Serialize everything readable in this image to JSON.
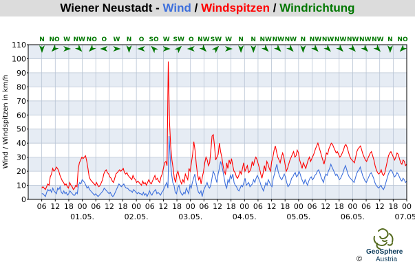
{
  "title": {
    "location": "Wiener Neustadt",
    "sep1": " - ",
    "wind": "Wind",
    "sep2": " / ",
    "gusts": "Windspitzen",
    "sep3": " / ",
    "direction": "Windrichtung"
  },
  "colors": {
    "wind": "#3d6fdc",
    "gusts": "#ff0000",
    "direction": "#007700",
    "band_light": "#e6ecf4",
    "band_white": "#ffffff",
    "grid": "#b8c4d4"
  },
  "branding": {
    "name": "GeoSphere",
    "sub": "Austria",
    "copyright": "©"
  },
  "chart_data": {
    "type": "line",
    "ylabel": "Wind / Windspitzen in km/h",
    "ylim": [
      0,
      110
    ],
    "yticks": [
      0,
      10,
      20,
      30,
      40,
      50,
      60,
      70,
      80,
      90,
      100,
      110
    ],
    "xlim_hours": [
      0,
      168
    ],
    "hour_ticks": [
      "06",
      "12",
      "18",
      "00",
      "06",
      "12",
      "18",
      "00",
      "06",
      "12",
      "18",
      "00",
      "06",
      "12",
      "18",
      "00",
      "06",
      "12",
      "18",
      "00",
      "06",
      "12",
      "18",
      "00",
      "06",
      "12",
      "18",
      "00",
      "06",
      "12",
      "18"
    ],
    "date_labels": [
      "01.05.",
      "02.05.",
      "03.05.",
      "04.05.",
      "05.05.",
      "06.05.",
      "07.05."
    ],
    "series": [
      {
        "name": "Wind",
        "values": [
          4,
          4,
          3,
          2,
          5,
          7,
          6,
          7,
          5,
          8,
          6,
          5,
          4,
          8,
          7,
          9,
          5,
          4,
          6,
          4,
          5,
          3,
          4,
          6,
          5,
          4,
          3,
          3,
          5,
          4,
          10,
          12,
          11,
          14,
          13,
          12,
          10,
          8,
          9,
          7,
          6,
          5,
          4,
          3,
          4,
          3,
          2,
          3,
          4,
          5,
          6,
          8,
          7,
          6,
          5,
          4,
          5,
          3,
          2,
          3,
          5,
          7,
          9,
          11,
          10,
          9,
          10,
          11,
          9,
          8,
          8,
          7,
          6,
          6,
          5,
          7,
          6,
          5,
          4,
          5,
          4,
          4,
          3,
          5,
          3,
          4,
          2,
          4,
          6,
          4,
          3,
          5,
          6,
          7,
          4,
          5,
          4,
          3,
          5,
          6,
          8,
          10,
          12,
          8,
          45,
          28,
          18,
          12,
          10,
          5,
          4,
          8,
          10,
          6,
          4,
          3,
          5,
          4,
          8,
          6,
          4,
          10,
          8,
          12,
          15,
          18,
          12,
          8,
          5,
          4,
          6,
          2,
          6,
          8,
          10,
          12,
          9,
          8,
          10,
          15,
          20,
          18,
          15,
          12,
          18,
          22,
          27,
          24,
          20,
          15,
          10,
          8,
          14,
          12,
          17,
          15,
          18,
          12,
          10,
          9,
          7,
          6,
          8,
          10,
          9,
          12,
          15,
          10,
          11,
          12,
          9,
          10,
          11,
          14,
          12,
          15,
          17,
          15,
          13,
          10,
          8,
          6,
          9,
          12,
          10,
          14,
          12,
          10,
          9,
          15,
          18,
          22,
          25,
          20,
          17,
          15,
          14,
          16,
          18,
          16,
          12,
          9,
          10,
          12,
          15,
          16,
          18,
          19,
          16,
          17,
          20,
          18,
          15,
          13,
          11,
          14,
          12,
          10,
          13,
          15,
          16,
          14,
          15,
          17,
          18,
          20,
          21,
          19,
          16,
          14,
          12,
          16,
          18,
          17,
          20,
          22,
          25,
          23,
          21,
          19,
          17,
          18,
          16,
          14,
          15,
          17,
          19,
          22,
          24,
          21,
          18,
          16,
          15,
          14,
          13,
          12,
          15,
          18,
          20,
          21,
          23,
          20,
          17,
          15,
          13,
          12,
          14,
          16,
          18,
          19,
          17,
          15,
          12,
          10,
          9,
          8,
          9,
          10,
          8,
          7,
          9,
          12,
          15,
          18,
          20,
          21,
          20,
          18,
          16,
          17,
          19,
          18,
          16,
          14,
          13,
          15,
          14,
          12,
          13
        ],
        "note": ""
      },
      {
        "name": "Windspitzen",
        "values": [
          8,
          9,
          8,
          7,
          9,
          11,
          10,
          16,
          18,
          22,
          20,
          21,
          23,
          22,
          20,
          17,
          15,
          13,
          12,
          10,
          11,
          9,
          8,
          12,
          10,
          9,
          7,
          8,
          10,
          9,
          22,
          26,
          28,
          30,
          29,
          30,
          31,
          27,
          22,
          16,
          14,
          13,
          12,
          11,
          10,
          12,
          10,
          9,
          10,
          12,
          14,
          18,
          20,
          21,
          19,
          18,
          16,
          15,
          13,
          12,
          15,
          18,
          19,
          20,
          21,
          20,
          21,
          22,
          19,
          18,
          19,
          17,
          16,
          15,
          14,
          17,
          15,
          14,
          12,
          13,
          12,
          11,
          10,
          13,
          11,
          12,
          10,
          12,
          14,
          12,
          11,
          13,
          15,
          17,
          14,
          15,
          13,
          12,
          16,
          18,
          22,
          26,
          27,
          24,
          98,
          55,
          38,
          28,
          22,
          15,
          12,
          18,
          20,
          16,
          13,
          11,
          14,
          12,
          18,
          16,
          14,
          22,
          20,
          26,
          32,
          41,
          35,
          25,
          18,
          14,
          16,
          11,
          16,
          20,
          26,
          30,
          28,
          24,
          26,
          35,
          45,
          46,
          38,
          28,
          30,
          32,
          40,
          34,
          30,
          24,
          20,
          18,
          26,
          22,
          28,
          25,
          29,
          24,
          20,
          19,
          16,
          15,
          17,
          20,
          18,
          22,
          26,
          20,
          22,
          24,
          19,
          20,
          22,
          27,
          24,
          28,
          30,
          28,
          25,
          22,
          18,
          15,
          19,
          24,
          20,
          27,
          25,
          22,
          20,
          27,
          30,
          35,
          38,
          34,
          30,
          28,
          26,
          30,
          33,
          30,
          25,
          20,
          22,
          25,
          28,
          30,
          32,
          34,
          30,
          31,
          35,
          33,
          28,
          25,
          22,
          26,
          24,
          22,
          25,
          28,
          30,
          27,
          29,
          31,
          33,
          36,
          38,
          40,
          37,
          34,
          31,
          28,
          25,
          29,
          33,
          32,
          36,
          38,
          40,
          39,
          37,
          35,
          33,
          34,
          32,
          30,
          31,
          33,
          35,
          38,
          39,
          37,
          34,
          31,
          29,
          28,
          27,
          26,
          30,
          34,
          36,
          37,
          38,
          35,
          32,
          30,
          28,
          27,
          29,
          31,
          33,
          34,
          31,
          28,
          24,
          21,
          19,
          18,
          19,
          21,
          18,
          17,
          19,
          23,
          27,
          31,
          33,
          34,
          32,
          30,
          28,
          30,
          33,
          32,
          29,
          26,
          25,
          28,
          27,
          24,
          25
        ],
        "note": ""
      }
    ],
    "direction_labels": [
      "N",
      "NO",
      "W",
      "NW",
      "NO",
      "O",
      "W",
      "N",
      "O",
      "SO",
      "W",
      "SW",
      "O",
      "NW",
      "SW",
      "W",
      "N",
      "N",
      "NW",
      "NW",
      "NW",
      "N",
      "NW",
      "NW",
      "NW",
      "NW",
      "NW",
      "NW",
      "N",
      "NO"
    ]
  }
}
